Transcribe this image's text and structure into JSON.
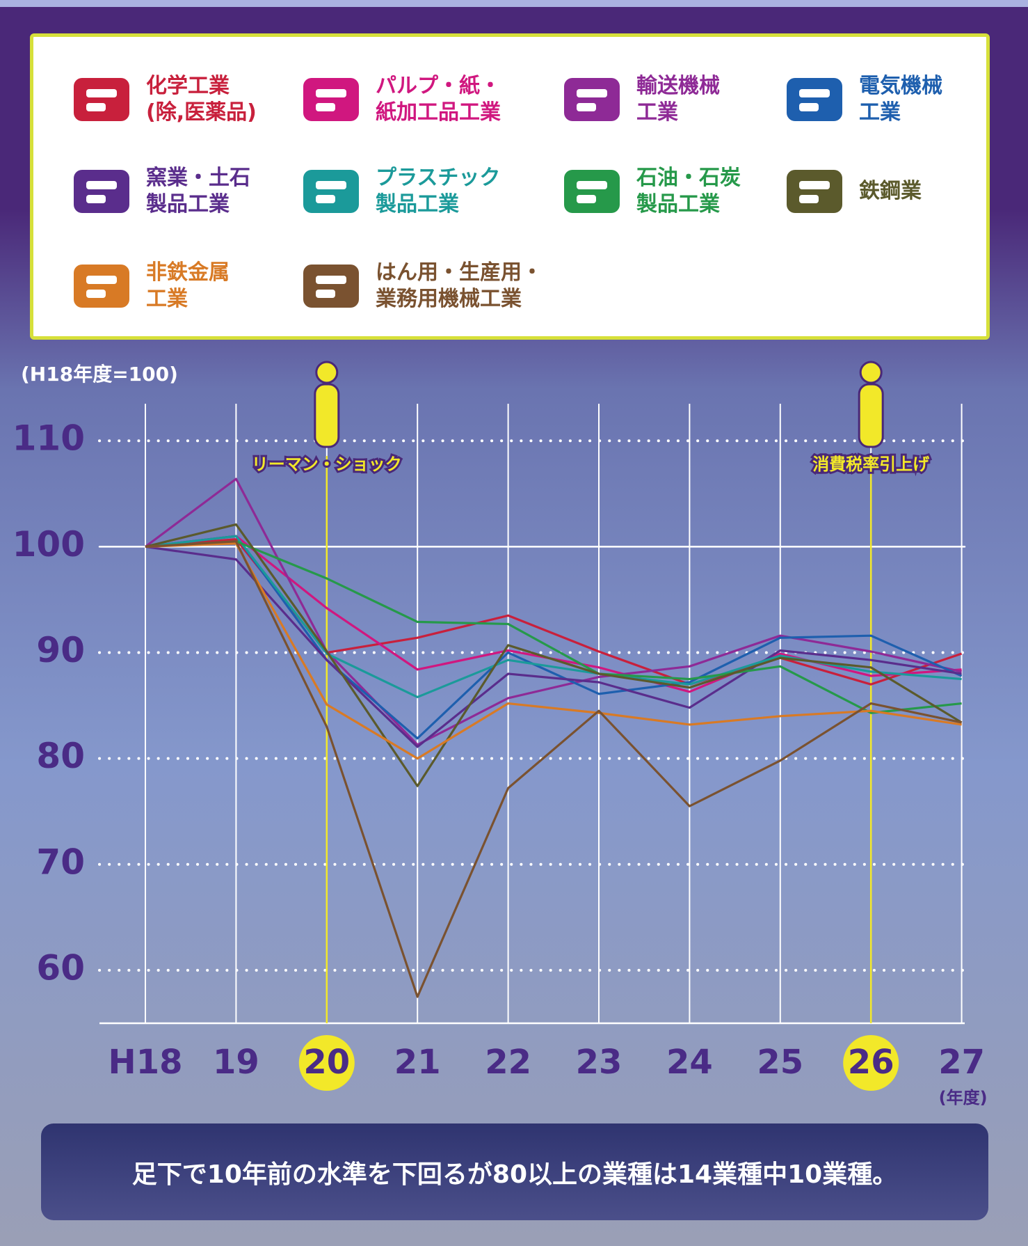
{
  "chart_data": {
    "type": "line",
    "y_unit_note": "(H18年度=100)",
    "x_unit_note": "(年度)",
    "categories": [
      "H18",
      "19",
      "20",
      "21",
      "22",
      "23",
      "24",
      "25",
      "26",
      "27"
    ],
    "ylim": [
      55,
      113.5
    ],
    "yticks": [
      60,
      70,
      80,
      90,
      100,
      110
    ],
    "grid": true,
    "grid_style": "dotted",
    "solid_ytick": 100,
    "events": [
      {
        "label": "リーマン・ショック",
        "category": "20"
      },
      {
        "label": "消費税率引上げ",
        "category": "26"
      }
    ],
    "series": [
      {
        "name": "化学工業\n(除,医薬品)",
        "color": "#c8203c",
        "values": [
          100,
          100.7,
          90,
          91.4,
          93.5,
          90.1,
          87,
          89.5,
          87,
          89.9
        ]
      },
      {
        "name": "パルプ・紙・\n紙加工品工業",
        "color": "#d0177f",
        "values": [
          100,
          101,
          94.2,
          88.4,
          90.2,
          88.6,
          86.3,
          89.9,
          87.8,
          88.4
        ]
      },
      {
        "name": "輸送機械\n工業",
        "color": "#8e2a96",
        "values": [
          100,
          106.4,
          90.1,
          81.3,
          85.7,
          87.7,
          88.7,
          91.6,
          90.1,
          88.2
        ]
      },
      {
        "name": "電気機械\n工業",
        "color": "#1e5fae",
        "values": [
          100,
          101,
          89.3,
          81.9,
          90,
          86.1,
          87.2,
          91.4,
          91.6,
          87.8
        ]
      },
      {
        "name": "窯業・土石\n製品工業",
        "color": "#5a2d8c",
        "values": [
          100,
          98.8,
          89.3,
          81.1,
          88,
          87.2,
          84.8,
          90.2,
          89.3,
          88
        ]
      },
      {
        "name": "プラスチック\n製品工業",
        "color": "#1b9a9a",
        "values": [
          100,
          101,
          89.9,
          85.8,
          89.3,
          88,
          87,
          89.7,
          88.2,
          87.5
        ]
      },
      {
        "name": "石油・石炭\n製品工業",
        "color": "#26994a",
        "values": [
          100,
          100.5,
          97,
          92.9,
          92.7,
          88,
          87.5,
          88.7,
          84.3,
          85.2
        ]
      },
      {
        "name": "鉄鋼業",
        "color": "#5b5a2c",
        "values": [
          100,
          102.1,
          90.1,
          77.4,
          90.7,
          88,
          86.7,
          89.5,
          88.6,
          83.4
        ]
      },
      {
        "name": "非鉄金属\n工業",
        "color": "#d87a25",
        "values": [
          100,
          100.3,
          85.1,
          80,
          85.2,
          84.3,
          83.2,
          84,
          84.5,
          83.2
        ]
      },
      {
        "name": "はん用・生産用・\n業務用機械工業",
        "color": "#7a5230",
        "values": [
          100,
          100.5,
          83,
          57.5,
          77.2,
          84.5,
          75.5,
          79.8,
          85.2,
          83.4
        ]
      }
    ]
  },
  "footer": "足下で10年前の水準を下回るが80以上の業種は14業種中10業種。"
}
